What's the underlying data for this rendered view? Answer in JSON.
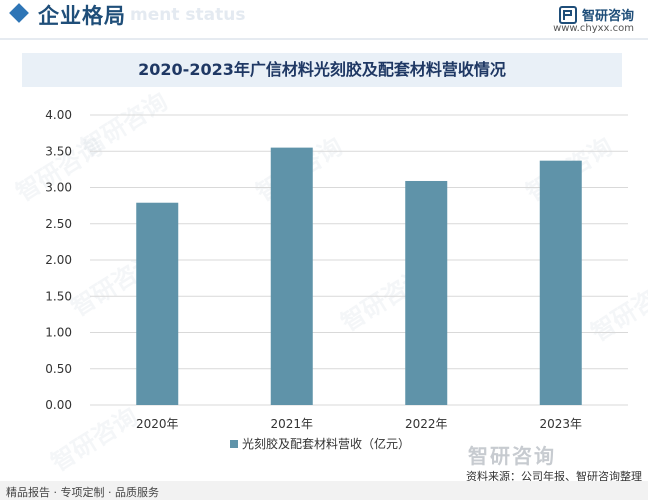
{
  "header": {
    "title": "企业格局",
    "subtitle": "ment status"
  },
  "brand": {
    "name": "智研咨询",
    "url": "www.chyxx.com"
  },
  "watermark": {
    "text": "智研咨询"
  },
  "footer": {
    "left_text": "精品报告 · 专项定制 · 品质服务",
    "source": "资料来源：公司年报、智研咨询整理"
  },
  "colors": {
    "bar": "#5f93a9",
    "grid": "#d9d9d9",
    "title_bg": "#e9f0f7",
    "accent": "#2e75b6"
  },
  "chart_data": {
    "type": "bar",
    "title": "2020-2023年广信材料光刻胶及配套材料营收情况",
    "categories": [
      "2020年",
      "2021年",
      "2022年",
      "2023年"
    ],
    "series": [
      {
        "name": "光刻胶及配套材料营收（亿元）",
        "values": [
          2.79,
          3.55,
          3.09,
          3.37
        ]
      }
    ],
    "ylim": [
      0,
      4
    ],
    "yticks": [
      "0.00",
      "0.50",
      "1.00",
      "1.50",
      "2.00",
      "2.50",
      "3.00",
      "3.50",
      "4.00"
    ],
    "xlabel": "",
    "ylabel": "",
    "grid": true,
    "legend_position": "bottom"
  }
}
